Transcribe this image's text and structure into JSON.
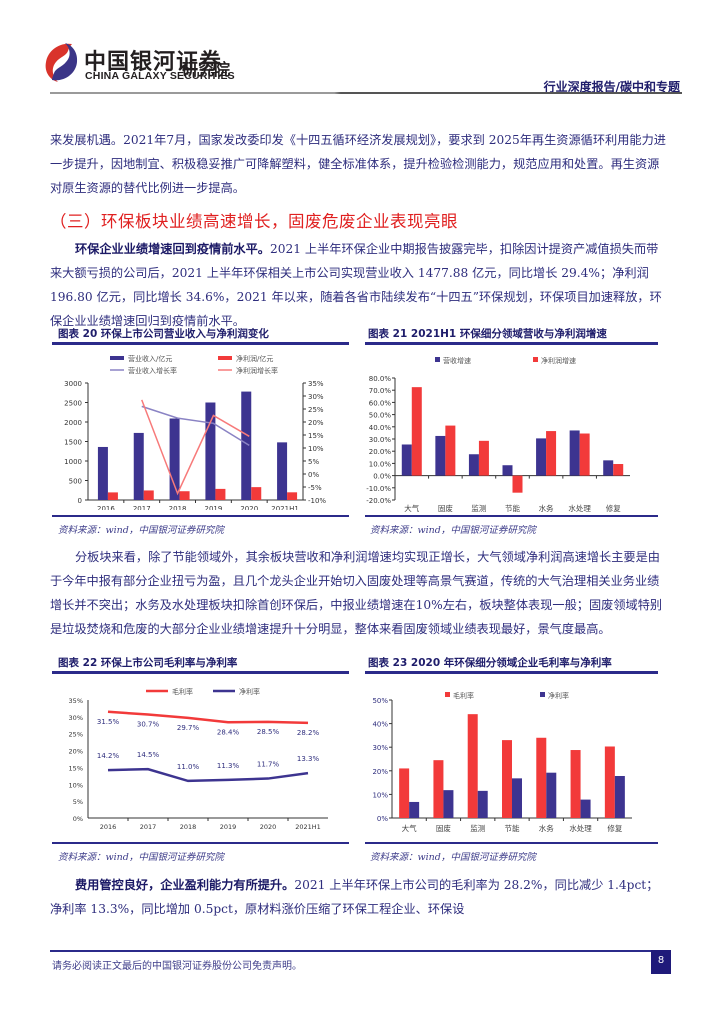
{
  "header": {
    "logo_cn": "中国银河证券",
    "logo_en": "CHINA GALAXY SECURITIES",
    "logo_institute": "研究院",
    "report_tag": "行业深度报告/碳中和专题"
  },
  "body": {
    "para1": "来发展机遇。2021年7月，国家发改委印发《十四五循环经济发展规划》，要求到 2025年再生资源循环利用能力进一步提升，因地制宜、积极稳妥推广可降解塑料，健全标准体系，提升检验检测能力，规范应用和处置。再生资源对原生资源的替代比例进一步提高。",
    "section_title": "（三）环保板块业绩高速增长，固废危废企业表现亮眼",
    "para2_lead": "环保企业业绩增速回到疫情前水平。",
    "para2_text": "2021 上半年环保企业中期报告披露完毕，扣除因计提资产减值损失而带来大额亏损的公司后，2021 上半年环保相关上市公司实现营业收入 1477.88 亿元，同比增长 29.4%；净利润 196.80 亿元，同比增长 34.6%，2021 年以来，随着各省市陆续发布“十四五”环保规划，环保项目加速释放，环保企业业绩增速回归到疫情前水平。",
    "para3": "分板块来看，除了节能领域外，其余板块营收和净利润增速均实现正增长，大气领域净利润高速增长主要是由于今年中报有部分企业扭亏为盈，且几个龙头企业开始切入固废处理等高景气赛道，传统的大气治理相关业务业绩增长并不突出；水务及水处理板块扣除首创环保后，中报业绩增速在10%左右，板块整体表现一般；固废领域特别是垃圾焚烧和危废的大部分企业业绩增速提升十分明显，整体来看固废领域业绩表现最好，景气度最高。",
    "para4_lead": "费用管控良好，企业盈利能力有所提升。",
    "para4_text": "2021 上半年环保上市公司的毛利率为 28.2%，同比减少 1.4pct；净利率 13.3%，同比增加 0.5pct，原材料涨价压缩了环保工程企业、环保设"
  },
  "figures": {
    "fig20": {
      "title": "图表 20 环保上市公司营业收入与净利润变化",
      "source": "资料来源：wind，中国银河证券研究院"
    },
    "fig21": {
      "title": "图表 21 2021H1 环保细分领域营收与净利润增速",
      "source": "资料来源：wind，中国银河证券研究院"
    },
    "fig22": {
      "title": "图表 22 环保上市公司毛利率与净利率",
      "source": "资料来源：wind，中国银河证券研究院"
    },
    "fig23": {
      "title": "图表 23 2020 年环保细分领域企业毛利率与净利率",
      "source": "资料来源：wind，中国银河证券研究院"
    }
  },
  "colors": {
    "navy": "#3d3490",
    "red": "#f23a3a",
    "light_navy": "#8a83c4",
    "light_red": "#f77a7a"
  },
  "chart_data": [
    {
      "id": "fig20",
      "type": "bar",
      "title": "环保上市公司营业收入与净利润变化",
      "categories": [
        "2016",
        "2017",
        "2018",
        "2019",
        "2020",
        "2021H1"
      ],
      "series": [
        {
          "name": "营业收入/亿元",
          "type": "bar",
          "axis": "left",
          "values": [
            1360,
            1720,
            2090,
            2500,
            2780,
            1478
          ]
        },
        {
          "name": "净利润/亿元",
          "type": "bar",
          "axis": "left",
          "values": [
            195,
            245,
            225,
            285,
            330,
            197
          ]
        },
        {
          "name": "营业收入增长率",
          "type": "line",
          "axis": "right",
          "values": [
            null,
            26.0,
            21.5,
            19.5,
            11.0,
            null
          ]
        },
        {
          "name": "净利润增长率",
          "type": "line",
          "axis": "right",
          "values": [
            null,
            28.5,
            -7.5,
            22.5,
            14.5,
            null
          ]
        }
      ],
      "left_axis": {
        "ticks": [
          "0",
          "500",
          "1000",
          "1500",
          "2000",
          "2500",
          "3000"
        ],
        "ylim": [
          0,
          3000
        ]
      },
      "right_axis": {
        "ticks": [
          "-10%",
          "-5%",
          "0%",
          "5%",
          "10%",
          "15%",
          "20%",
          "25%",
          "30%",
          "35%"
        ],
        "ylim": [
          -10,
          35
        ]
      },
      "legend_position": "top",
      "grid": false
    },
    {
      "id": "fig21",
      "type": "bar",
      "title": "2021H1环保细分领域营收与净利润增速",
      "categories": [
        "大气",
        "固废",
        "监测",
        "节能",
        "水务",
        "水处理",
        "修复"
      ],
      "series": [
        {
          "name": "营收增速",
          "values": [
            25.5,
            32.5,
            17.5,
            8.5,
            30.5,
            37.0,
            12.5
          ]
        },
        {
          "name": "净利润增速",
          "values": [
            72.5,
            41.0,
            28.5,
            -14.0,
            36.5,
            34.5,
            9.5
          ]
        }
      ],
      "y_ticks": [
        "-20.0%",
        "-10.0%",
        "0.0%",
        "10.0%",
        "20.0%",
        "30.0%",
        "40.0%",
        "50.0%",
        "60.0%",
        "70.0%",
        "80.0%"
      ],
      "ylim": [
        -20,
        80
      ],
      "legend_position": "top",
      "grid": false
    },
    {
      "id": "fig22",
      "type": "line",
      "title": "环保上市公司毛利率与净利率",
      "categories": [
        "2016",
        "2017",
        "2018",
        "2019",
        "2020",
        "2021H1"
      ],
      "series": [
        {
          "name": "毛利率",
          "values": [
            31.5,
            30.7,
            29.7,
            28.4,
            28.5,
            28.2
          ],
          "labels": [
            "31.5%",
            "30.7%",
            "29.7%",
            "28.4%",
            "28.5%",
            "28.2%"
          ]
        },
        {
          "name": "净利率",
          "values": [
            14.2,
            14.5,
            11.0,
            11.3,
            11.7,
            13.3
          ],
          "labels": [
            "14.2%",
            "14.5%",
            "11.0%",
            "11.3%",
            "11.7%",
            "13.3%"
          ]
        }
      ],
      "y_ticks": [
        "0%",
        "5%",
        "10%",
        "15%",
        "20%",
        "25%",
        "30%",
        "35%"
      ],
      "ylim": [
        0,
        35
      ],
      "legend_position": "top",
      "grid": false
    },
    {
      "id": "fig23",
      "type": "bar",
      "title": "2020年环保细分领域企业毛利率与净利率",
      "categories": [
        "大气",
        "固废",
        "监测",
        "节能",
        "水务",
        "水处理",
        "修复"
      ],
      "series": [
        {
          "name": "毛利率",
          "values": [
            21.0,
            24.5,
            44.0,
            33.0,
            34.0,
            28.8,
            30.3
          ]
        },
        {
          "name": "净利率",
          "values": [
            6.8,
            11.8,
            11.5,
            16.8,
            19.2,
            7.8,
            17.8
          ]
        }
      ],
      "y_ticks": [
        "0%",
        "10%",
        "20%",
        "30%",
        "40%",
        "50%"
      ],
      "ylim": [
        0,
        50
      ],
      "legend_position": "top",
      "grid": false
    }
  ],
  "footer": {
    "disclaimer": "请务必阅读正文最后的中国银河证券股份公司免责声明。",
    "page_number": "8"
  }
}
